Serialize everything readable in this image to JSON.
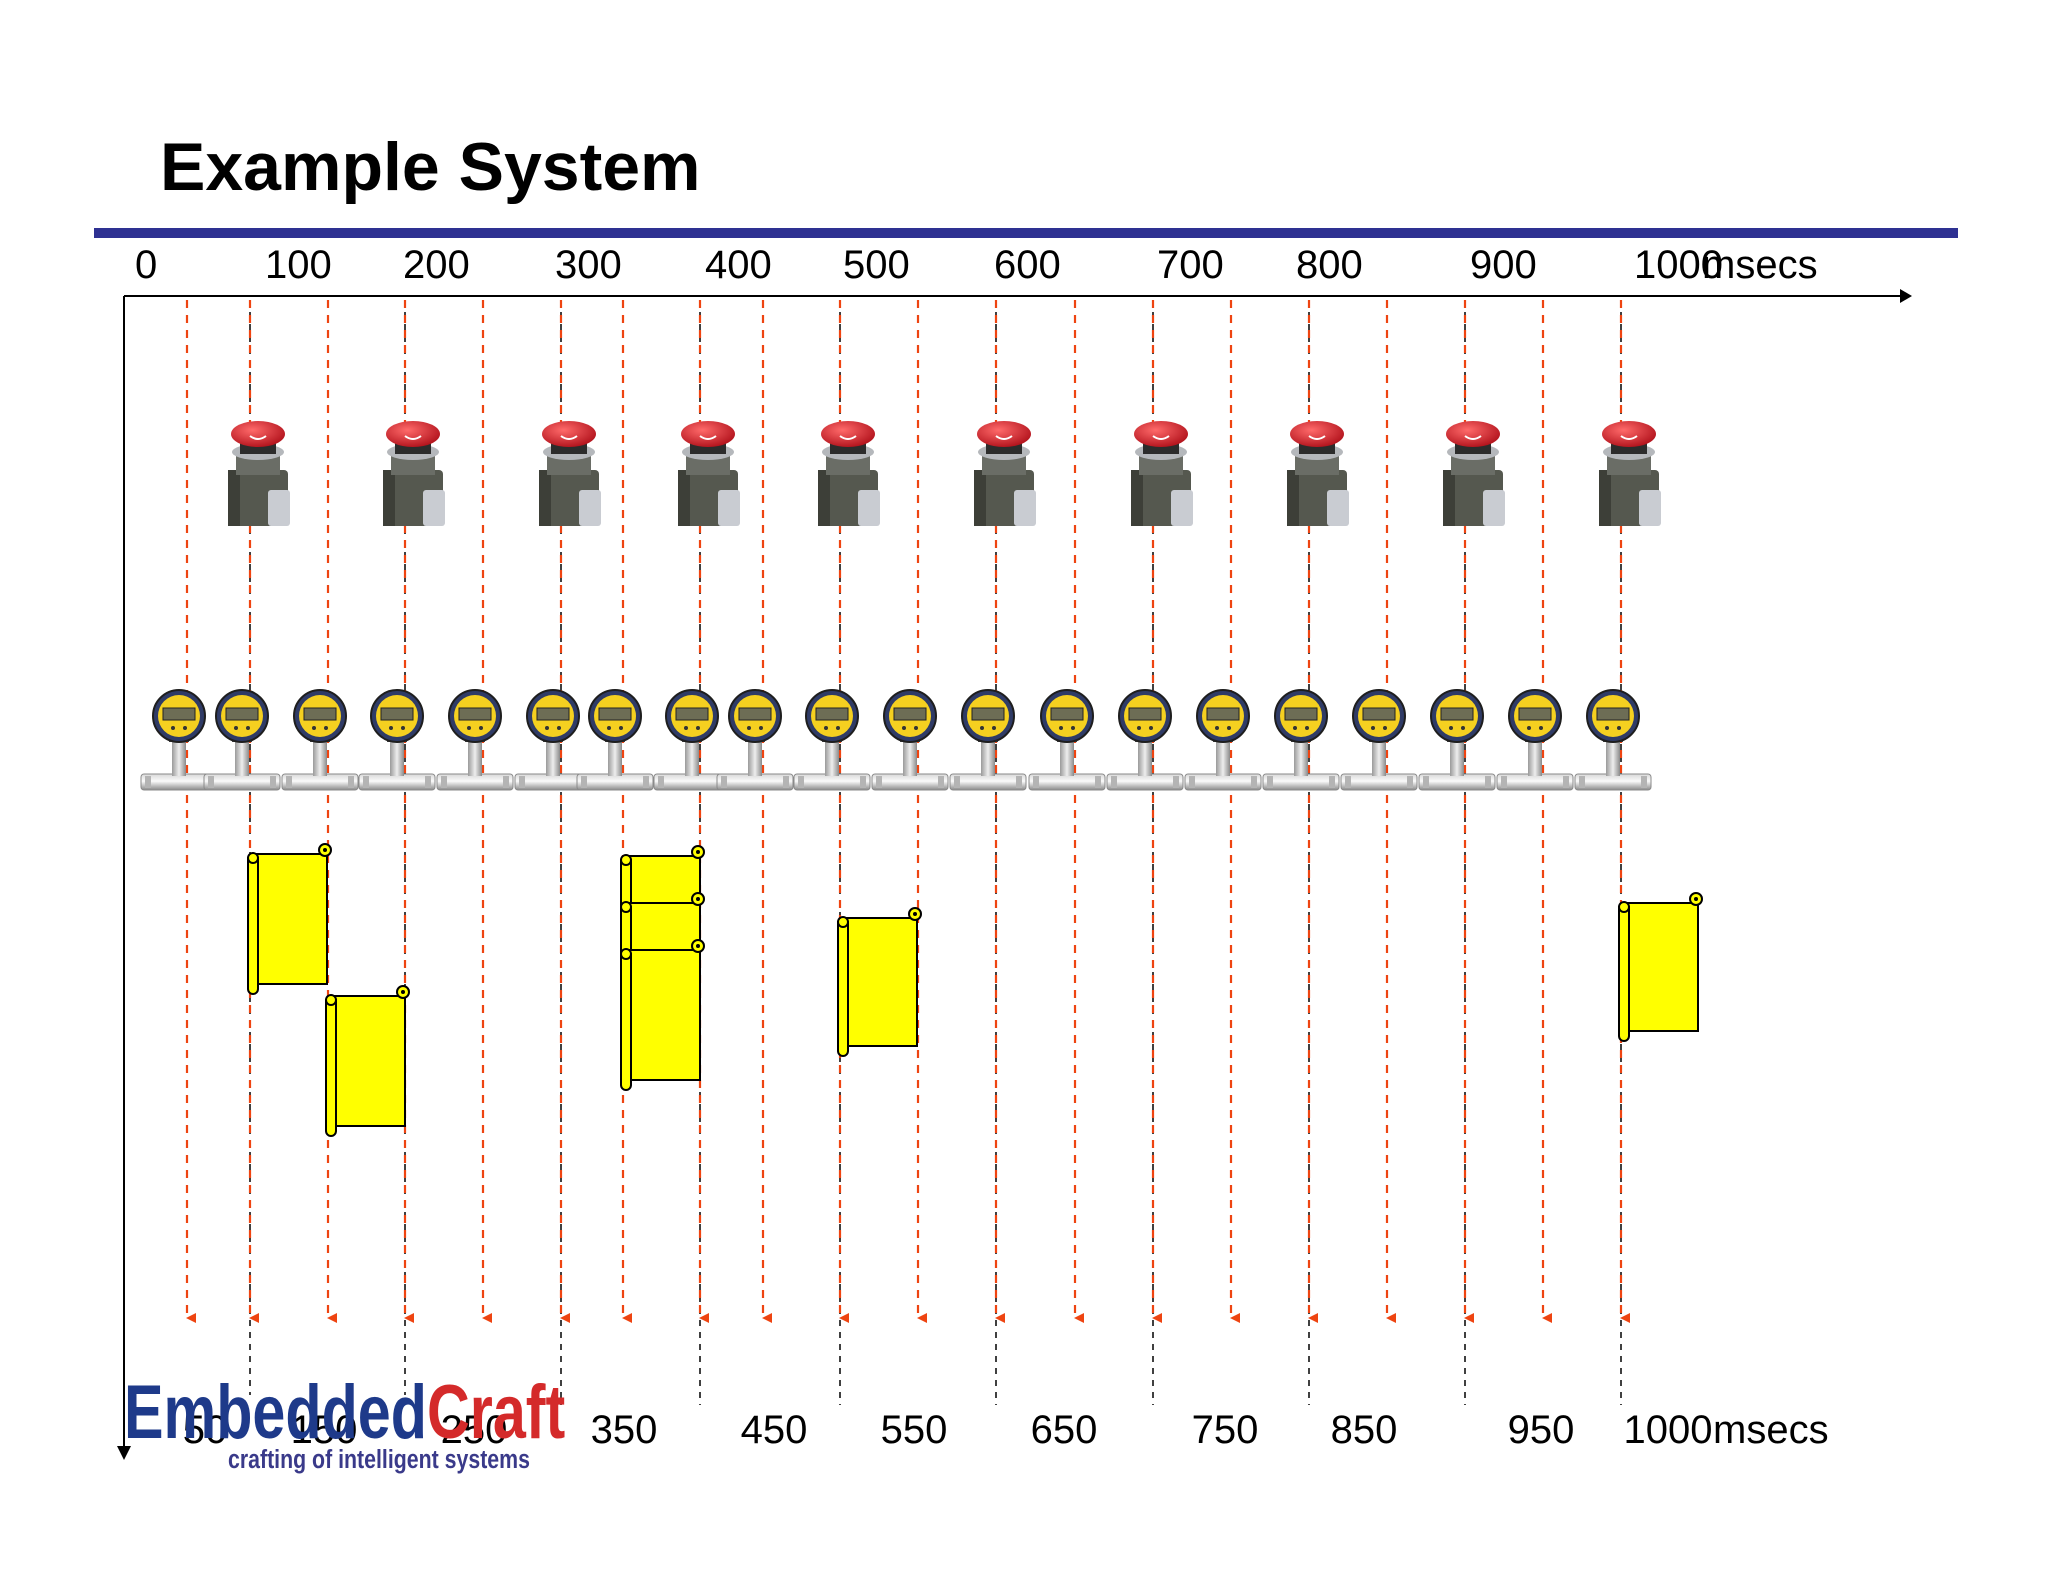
{
  "slide": {
    "title": "Example System"
  },
  "timeline": {
    "top_labels": [
      "0",
      "100",
      "200",
      "300",
      "400",
      "500",
      "600",
      "700",
      "800",
      "900",
      "1000"
    ],
    "top_unit": "msecs",
    "bottom_labels": [
      "50",
      "150",
      "250",
      "350",
      "450",
      "550",
      "650",
      "750",
      "850",
      "950",
      "1000"
    ],
    "bottom_unit": "msecs"
  },
  "events": {
    "arrow_times_ms": [
      50,
      100,
      150,
      200,
      250,
      300,
      350,
      400,
      450,
      500,
      550,
      600,
      650,
      700,
      750,
      800,
      850,
      900,
      950,
      1000
    ],
    "solid_marker_times_ms": [
      100,
      200,
      300,
      400,
      500,
      600,
      700,
      800,
      900,
      1000
    ],
    "button_press_times_ms": [
      100,
      200,
      300,
      400,
      500,
      600,
      700,
      800,
      900,
      1000
    ],
    "pressure_sample_times_ms": [
      50,
      100,
      150,
      200,
      250,
      300,
      350,
      400,
      450,
      500,
      550,
      600,
      650,
      700,
      750,
      800,
      850,
      900,
      950,
      1000
    ]
  },
  "logo": {
    "name_part1": "Embedded",
    "name_part2": "Craft",
    "tagline": "crafting of intelligent systems"
  },
  "colors": {
    "title_rule": "#2e3192",
    "arrow": "#ee4411",
    "axis": "#000000",
    "scroll_fill": "#ffff00",
    "logo_blue": "#1e3a8a",
    "logo_red": "#d42a2a",
    "button_red": "#e01c24",
    "gauge_face": "#f5d020"
  },
  "icons": {
    "button": "emergency-stop-button-icon",
    "gauge": "pressure-gauge-icon",
    "scroll": "scroll-icon"
  }
}
